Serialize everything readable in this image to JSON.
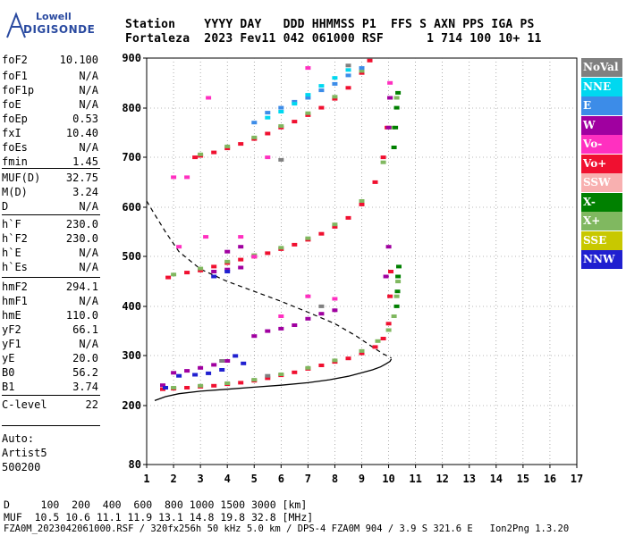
{
  "logo": {
    "line1": "Lowell",
    "line2": "DIGISONDE"
  },
  "header": {
    "row1": "Station    YYYY DAY   DDD HHMMSS P1  FFS S AXN PPS IGA PS",
    "row2": "Fortaleza  2023 Fev11 042 061000 RSF      1 714 100 10+ 11"
  },
  "params": [
    {
      "k": "foF2",
      "v": "10.100"
    },
    {
      "k": "foF1",
      "v": "N/A"
    },
    {
      "k": "foF1p",
      "v": "N/A"
    },
    {
      "k": "foE",
      "v": "N/A"
    },
    {
      "k": "foEp",
      "v": "0.53"
    },
    {
      "k": "fxI",
      "v": "10.40"
    },
    {
      "k": "foEs",
      "v": "N/A"
    },
    {
      "k": "fmin",
      "v": "1.45"
    },
    {
      "k": "MUF(D)",
      "v": "32.75"
    },
    {
      "k": "M(D)",
      "v": "3.24"
    },
    {
      "k": "D",
      "v": "N/A"
    },
    {
      "k": "h`F",
      "v": "230.0"
    },
    {
      "k": "h`F2",
      "v": "230.0"
    },
    {
      "k": "h`E",
      "v": "N/A"
    },
    {
      "k": "h`Es",
      "v": "N/A"
    },
    {
      "k": "hmF2",
      "v": "294.1"
    },
    {
      "k": "hmF1",
      "v": "N/A"
    },
    {
      "k": "hmE",
      "v": "110.0"
    },
    {
      "k": "yF2",
      "v": "66.1"
    },
    {
      "k": "yF1",
      "v": "N/A"
    },
    {
      "k": "yE",
      "v": "20.0"
    },
    {
      "k": "B0",
      "v": "56.2"
    },
    {
      "k": "B1",
      "v": "3.74"
    },
    {
      "k": "C-level",
      "v": "22"
    }
  ],
  "auto": {
    "l1": "Auto:",
    "l2": "Artist5",
    "l3": "500200"
  },
  "legend": [
    {
      "label": "NoVal",
      "color": "#808080"
    },
    {
      "label": "NNE",
      "color": "#00d8f0"
    },
    {
      "label": "E",
      "color": "#3c8ce8"
    },
    {
      "label": "W",
      "color": "#a000a0"
    },
    {
      "label": "Vo-",
      "color": "#ff30c0"
    },
    {
      "label": "Vo+",
      "color": "#f01030"
    },
    {
      "label": "SSW",
      "color": "#f8b0b0"
    },
    {
      "label": "X-",
      "color": "#008000"
    },
    {
      "label": "X+",
      "color": "#80b860"
    },
    {
      "label": "SSE",
      "color": "#c8c800"
    },
    {
      "label": "NNW",
      "color": "#2020d0"
    }
  ],
  "footer": {
    "row1": "D     100  200  400  600  800 1000 1500 3000 [km]",
    "row2": "MUF  10.5 10.6 11.1 11.9 13.1 14.8 19.8 32.8 [MHz]",
    "row3": "FZA0M_2023042061000.RSF / 320fx256h 50 kHz 5.0 km / DPS-4 FZA0M 904 / 3.9 S 321.6 E   Ion2Png 1.3.20"
  },
  "chart_data": {
    "type": "scatter",
    "xlim": [
      1,
      17
    ],
    "ylim": [
      80,
      900
    ],
    "x_ticks": [
      1,
      2,
      3,
      4,
      5,
      6,
      7,
      8,
      9,
      10,
      11,
      12,
      13,
      14,
      15,
      16,
      17
    ],
    "y_ticks": [
      80,
      200,
      300,
      400,
      500,
      600,
      700,
      800,
      900
    ],
    "grid": "dotted",
    "series": [
      {
        "name": "Vo+",
        "color": "#f01030",
        "points": [
          [
            1.6,
            233
          ],
          [
            2.0,
            234
          ],
          [
            2.5,
            236
          ],
          [
            3.0,
            238
          ],
          [
            3.5,
            240
          ],
          [
            4.0,
            243
          ],
          [
            4.5,
            246
          ],
          [
            5.0,
            250
          ],
          [
            5.5,
            255
          ],
          [
            6.0,
            261
          ],
          [
            6.5,
            267
          ],
          [
            7.0,
            274
          ],
          [
            7.5,
            281
          ],
          [
            8.0,
            288
          ],
          [
            8.5,
            295
          ],
          [
            9.0,
            305
          ],
          [
            9.5,
            318
          ],
          [
            9.8,
            335
          ],
          [
            10.0,
            365
          ],
          [
            10.05,
            420
          ],
          [
            10.08,
            470
          ],
          [
            1.8,
            458
          ],
          [
            2.5,
            468
          ],
          [
            3.0,
            472
          ],
          [
            3.5,
            480
          ],
          [
            4.0,
            487
          ],
          [
            4.5,
            494
          ],
          [
            5.0,
            500
          ],
          [
            5.5,
            507
          ],
          [
            6.0,
            515
          ],
          [
            6.5,
            524
          ],
          [
            7.0,
            534
          ],
          [
            7.5,
            546
          ],
          [
            8.0,
            560
          ],
          [
            8.5,
            578
          ],
          [
            9.0,
            605
          ],
          [
            9.5,
            650
          ],
          [
            9.8,
            700
          ],
          [
            9.95,
            760
          ],
          [
            10.05,
            820
          ],
          [
            2.8,
            700
          ],
          [
            3.0,
            703
          ],
          [
            3.5,
            710
          ],
          [
            4.0,
            718
          ],
          [
            4.5,
            727
          ],
          [
            5.0,
            737
          ],
          [
            5.5,
            748
          ],
          [
            6.0,
            760
          ],
          [
            6.5,
            772
          ],
          [
            7.0,
            785
          ],
          [
            7.5,
            800
          ],
          [
            8.0,
            818
          ],
          [
            8.5,
            840
          ],
          [
            9.0,
            870
          ],
          [
            9.3,
            895
          ]
        ]
      },
      {
        "name": "X+",
        "color": "#80b860",
        "points": [
          [
            2.0,
            236
          ],
          [
            3.0,
            240
          ],
          [
            4.0,
            245
          ],
          [
            5.0,
            252
          ],
          [
            6.0,
            263
          ],
          [
            7.0,
            276
          ],
          [
            8.0,
            291
          ],
          [
            9.0,
            310
          ],
          [
            9.6,
            330
          ],
          [
            10.0,
            352
          ],
          [
            10.2,
            380
          ],
          [
            10.3,
            420
          ],
          [
            10.35,
            450
          ],
          [
            2.0,
            464
          ],
          [
            3.0,
            476
          ],
          [
            4.0,
            490
          ],
          [
            5.0,
            503
          ],
          [
            6.0,
            518
          ],
          [
            7.0,
            537
          ],
          [
            8.0,
            565
          ],
          [
            9.0,
            612
          ],
          [
            9.8,
            690
          ],
          [
            10.15,
            760
          ],
          [
            10.3,
            820
          ],
          [
            3.0,
            706
          ],
          [
            4.0,
            722
          ],
          [
            5.0,
            740
          ],
          [
            6.0,
            763
          ],
          [
            7.0,
            789
          ],
          [
            8.0,
            822
          ],
          [
            9.0,
            874
          ]
        ]
      },
      {
        "name": "X-",
        "color": "#008000",
        "points": [
          [
            10.3,
            400
          ],
          [
            10.33,
            430
          ],
          [
            10.35,
            460
          ],
          [
            10.38,
            480
          ],
          [
            10.2,
            720
          ],
          [
            10.25,
            760
          ],
          [
            10.3,
            800
          ],
          [
            10.35,
            830
          ]
        ]
      },
      {
        "name": "W",
        "color": "#a000a0",
        "points": [
          [
            1.6,
            241
          ],
          [
            2.0,
            266
          ],
          [
            2.5,
            270
          ],
          [
            3.0,
            276
          ],
          [
            3.5,
            282
          ],
          [
            4.0,
            290
          ],
          [
            3.5,
            470
          ],
          [
            4.0,
            474
          ],
          [
            4.5,
            478
          ],
          [
            4.0,
            510
          ],
          [
            4.5,
            520
          ],
          [
            5.0,
            340
          ],
          [
            5.5,
            350
          ],
          [
            6.0,
            355
          ],
          [
            6.5,
            362
          ],
          [
            7.0,
            375
          ],
          [
            7.5,
            385
          ],
          [
            8.0,
            392
          ],
          [
            9.9,
            460
          ],
          [
            10.0,
            520
          ],
          [
            10.0,
            760
          ],
          [
            10.05,
            820
          ]
        ]
      },
      {
        "name": "E",
        "color": "#3c8ce8",
        "points": [
          [
            5.0,
            770
          ],
          [
            5.5,
            790
          ],
          [
            6.0,
            800
          ],
          [
            6.5,
            812
          ],
          [
            7.0,
            820
          ],
          [
            7.5,
            835
          ],
          [
            8.0,
            848
          ],
          [
            8.5,
            865
          ],
          [
            9.0,
            880
          ]
        ]
      },
      {
        "name": "NNE",
        "color": "#00d8f0",
        "points": [
          [
            5.5,
            780
          ],
          [
            6.0,
            792
          ],
          [
            6.5,
            808
          ],
          [
            7.0,
            826
          ],
          [
            7.5,
            844
          ],
          [
            8.0,
            860
          ],
          [
            8.5,
            876
          ]
        ]
      },
      {
        "name": "NNW",
        "color": "#2020d0",
        "points": [
          [
            1.7,
            236
          ],
          [
            2.2,
            260
          ],
          [
            2.8,
            262
          ],
          [
            3.3,
            265
          ],
          [
            3.8,
            272
          ],
          [
            4.3,
            300
          ],
          [
            4.6,
            285
          ],
          [
            3.5,
            460
          ],
          [
            4.0,
            470
          ]
        ]
      },
      {
        "name": "Vo-",
        "color": "#ff30c0",
        "points": [
          [
            2.2,
            520
          ],
          [
            3.2,
            540
          ],
          [
            4.5,
            540
          ],
          [
            5.0,
            500
          ],
          [
            6.0,
            380
          ],
          [
            7.0,
            420
          ],
          [
            8.0,
            415
          ],
          [
            2.0,
            660
          ],
          [
            2.5,
            660
          ],
          [
            3.3,
            820
          ],
          [
            5.5,
            700
          ],
          [
            7.0,
            880
          ],
          [
            10.05,
            850
          ]
        ]
      },
      {
        "name": "NoVal",
        "color": "#808080",
        "points": [
          [
            3.8,
            290
          ],
          [
            5.5,
            260
          ],
          [
            7.5,
            400
          ],
          [
            8.5,
            885
          ],
          [
            6.0,
            695
          ]
        ]
      }
    ],
    "profile": {
      "color": "#000",
      "points": [
        [
          1.3,
          210
        ],
        [
          1.7,
          218
        ],
        [
          2.2,
          224
        ],
        [
          3.0,
          229
        ],
        [
          4.0,
          233
        ],
        [
          5.0,
          237
        ],
        [
          6.0,
          241
        ],
        [
          7.0,
          246
        ],
        [
          7.8,
          252
        ],
        [
          8.5,
          259
        ],
        [
          9.0,
          266
        ],
        [
          9.4,
          272
        ],
        [
          9.7,
          278
        ],
        [
          9.9,
          284
        ],
        [
          10.05,
          289
        ],
        [
          10.1,
          294
        ]
      ]
    },
    "extension": {
      "color": "#000",
      "points": [
        [
          1.0,
          612
        ],
        [
          1.3,
          585
        ],
        [
          1.7,
          550
        ],
        [
          2.2,
          510
        ],
        [
          3.0,
          475
        ],
        [
          4.0,
          450
        ],
        [
          5.0,
          430
        ],
        [
          6.0,
          410
        ],
        [
          7.0,
          388
        ],
        [
          8.0,
          365
        ],
        [
          8.8,
          340
        ],
        [
          9.4,
          318
        ],
        [
          9.8,
          304
        ],
        [
          10.1,
          296
        ]
      ]
    }
  }
}
